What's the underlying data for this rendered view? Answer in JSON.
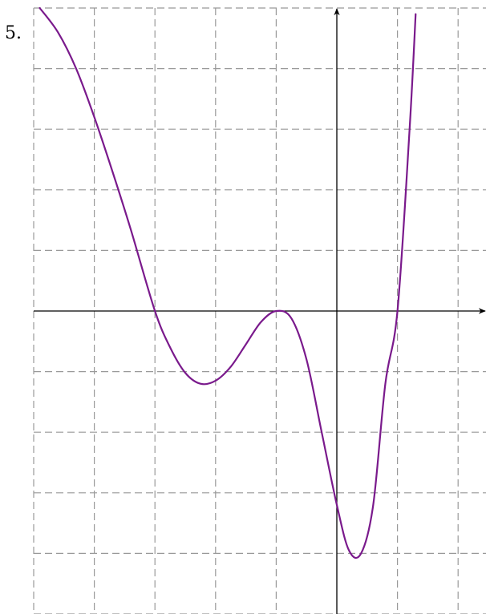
{
  "problem_number": "5.",
  "colors": {
    "curve": "#7a1a8c",
    "grid": "#999999",
    "axis": "#000000"
  },
  "chart_data": {
    "type": "line",
    "title": "",
    "xlabel": "",
    "ylabel": "",
    "xlim": [
      -5,
      2.5
    ],
    "ylim": [
      -5,
      5
    ],
    "x_grid_step": 1,
    "y_grid_step": 1,
    "grid": true,
    "grid_style": "dashed",
    "axes_arrows": true,
    "tick_labels": false,
    "series": [
      {
        "points": [
          [
            -4.9,
            5.0
          ],
          [
            -4.6,
            4.6
          ],
          [
            -4.3,
            4.0
          ],
          [
            -4.0,
            3.2
          ],
          [
            -3.7,
            2.3
          ],
          [
            -3.4,
            1.35
          ],
          [
            -3.0,
            0.0
          ],
          [
            -2.75,
            -0.6
          ],
          [
            -2.5,
            -1.02
          ],
          [
            -2.25,
            -1.2
          ],
          [
            -2.0,
            -1.15
          ],
          [
            -1.75,
            -0.92
          ],
          [
            -1.5,
            -0.55
          ],
          [
            -1.25,
            -0.18
          ],
          [
            -1.0,
            0.0
          ],
          [
            -0.75,
            -0.12
          ],
          [
            -0.5,
            -0.8
          ],
          [
            -0.25,
            -2.0
          ],
          [
            0.0,
            -3.2
          ],
          [
            0.2,
            -3.95
          ],
          [
            0.4,
            -4.0
          ],
          [
            0.6,
            -3.2
          ],
          [
            0.8,
            -1.2
          ],
          [
            1.0,
            0.0
          ],
          [
            1.2,
            3.0
          ],
          [
            1.3,
            4.9
          ]
        ]
      }
    ]
  }
}
